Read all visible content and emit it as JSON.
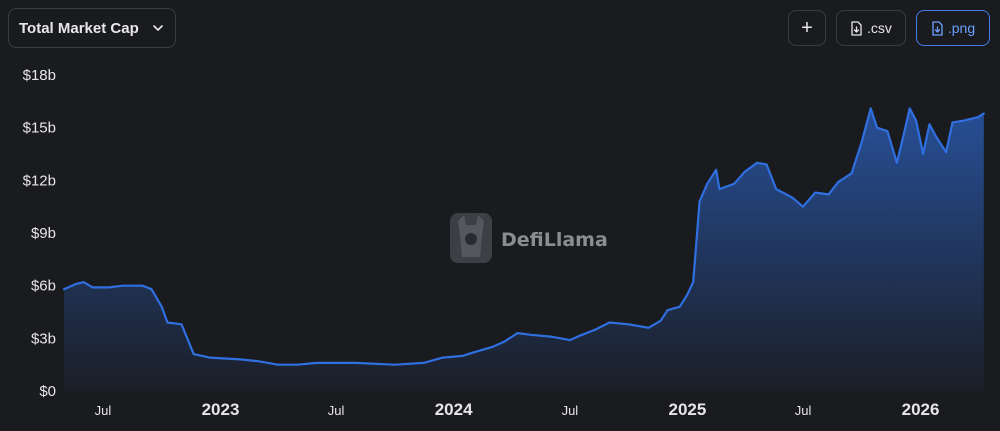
{
  "toolbar": {
    "metric_select_label": "Total Market Cap",
    "add_label": "+",
    "csv_label": ".csv",
    "png_label": ".png"
  },
  "watermark": {
    "text": "DefiLlama"
  },
  "colors": {
    "line": "#2f6fe0",
    "background": "#1a1b1f",
    "png_accent": "#3f7de8"
  },
  "icons": {
    "select": "chevron-down-icon",
    "add": "plus-icon",
    "csv": "file-download-icon",
    "png": "file-download-icon",
    "watermark": "llama-logo-icon"
  },
  "chart_data": {
    "type": "area",
    "x_axis": {
      "type": "date",
      "range": [
        "2022-05-01",
        "2026-04-15"
      ]
    },
    "y_axis": {
      "range": [
        0,
        18
      ],
      "unit": "$b",
      "ticks": [
        0,
        3,
        6,
        9,
        12,
        15,
        18
      ],
      "tick_labels": [
        "$0",
        "$3b",
        "$6b",
        "$9b",
        "$12b",
        "$15b",
        "$18b"
      ]
    },
    "x_ticks": [
      {
        "date": "2022-07-01",
        "label": "Jul",
        "major": false
      },
      {
        "date": "2023-01-01",
        "label": "2023",
        "major": true
      },
      {
        "date": "2023-07-01",
        "label": "Jul",
        "major": false
      },
      {
        "date": "2024-01-01",
        "label": "2024",
        "major": true
      },
      {
        "date": "2024-07-01",
        "label": "Jul",
        "major": false
      },
      {
        "date": "2025-01-01",
        "label": "2025",
        "major": true
      },
      {
        "date": "2025-07-01",
        "label": "Jul",
        "major": false
      },
      {
        "date": "2026-01-01",
        "label": "2026",
        "major": true
      }
    ],
    "grid": false,
    "series": [
      {
        "points": [
          [
            "2022-05-01",
            5.8
          ],
          [
            "2022-05-20",
            6.1
          ],
          [
            "2022-06-01",
            6.2
          ],
          [
            "2022-06-15",
            5.9
          ],
          [
            "2022-07-10",
            5.9
          ],
          [
            "2022-08-01",
            6.0
          ],
          [
            "2022-09-01",
            6.0
          ],
          [
            "2022-09-15",
            5.8
          ],
          [
            "2022-10-01",
            4.8
          ],
          [
            "2022-10-10",
            3.9
          ],
          [
            "2022-11-01",
            3.8
          ],
          [
            "2022-11-20",
            2.1
          ],
          [
            "2022-12-15",
            1.9
          ],
          [
            "2023-02-01",
            1.8
          ],
          [
            "2023-03-01",
            1.7
          ],
          [
            "2023-04-01",
            1.5
          ],
          [
            "2023-05-01",
            1.5
          ],
          [
            "2023-06-01",
            1.6
          ],
          [
            "2023-08-01",
            1.6
          ],
          [
            "2023-10-01",
            1.5
          ],
          [
            "2023-11-15",
            1.6
          ],
          [
            "2023-12-15",
            1.9
          ],
          [
            "2024-01-15",
            2.0
          ],
          [
            "2024-02-01",
            2.2
          ],
          [
            "2024-03-01",
            2.5
          ],
          [
            "2024-03-20",
            2.8
          ],
          [
            "2024-04-10",
            3.3
          ],
          [
            "2024-05-01",
            3.2
          ],
          [
            "2024-06-01",
            3.1
          ],
          [
            "2024-07-01",
            2.9
          ],
          [
            "2024-07-20",
            3.2
          ],
          [
            "2024-08-10",
            3.5
          ],
          [
            "2024-09-01",
            3.9
          ],
          [
            "2024-10-01",
            3.8
          ],
          [
            "2024-11-01",
            3.6
          ],
          [
            "2024-11-20",
            4.0
          ],
          [
            "2024-12-01",
            4.6
          ],
          [
            "2024-12-20",
            4.8
          ],
          [
            "2025-01-01",
            5.5
          ],
          [
            "2025-01-10",
            6.2
          ],
          [
            "2025-01-20",
            10.8
          ],
          [
            "2025-02-01",
            11.8
          ],
          [
            "2025-02-15",
            12.6
          ],
          [
            "2025-02-20",
            11.5
          ],
          [
            "2025-03-15",
            11.8
          ],
          [
            "2025-04-01",
            12.5
          ],
          [
            "2025-04-20",
            13.0
          ],
          [
            "2025-05-05",
            12.9
          ],
          [
            "2025-05-20",
            11.5
          ],
          [
            "2025-06-15",
            11.0
          ],
          [
            "2025-07-01",
            10.5
          ],
          [
            "2025-07-20",
            11.3
          ],
          [
            "2025-08-10",
            11.2
          ],
          [
            "2025-08-25",
            11.9
          ],
          [
            "2025-09-15",
            12.4
          ],
          [
            "2025-10-01",
            14.2
          ],
          [
            "2025-10-15",
            16.1
          ],
          [
            "2025-10-25",
            15.0
          ],
          [
            "2025-11-10",
            14.8
          ],
          [
            "2025-11-25",
            13.0
          ],
          [
            "2025-12-05",
            14.5
          ],
          [
            "2025-12-15",
            16.1
          ],
          [
            "2025-12-25",
            15.4
          ],
          [
            "2026-01-05",
            13.5
          ],
          [
            "2026-01-15",
            15.2
          ],
          [
            "2026-01-25",
            14.5
          ],
          [
            "2026-02-10",
            13.6
          ],
          [
            "2026-02-20",
            15.3
          ],
          [
            "2026-03-10",
            15.4
          ],
          [
            "2026-04-01",
            15.6
          ],
          [
            "2026-04-10",
            15.8
          ]
        ]
      }
    ]
  }
}
